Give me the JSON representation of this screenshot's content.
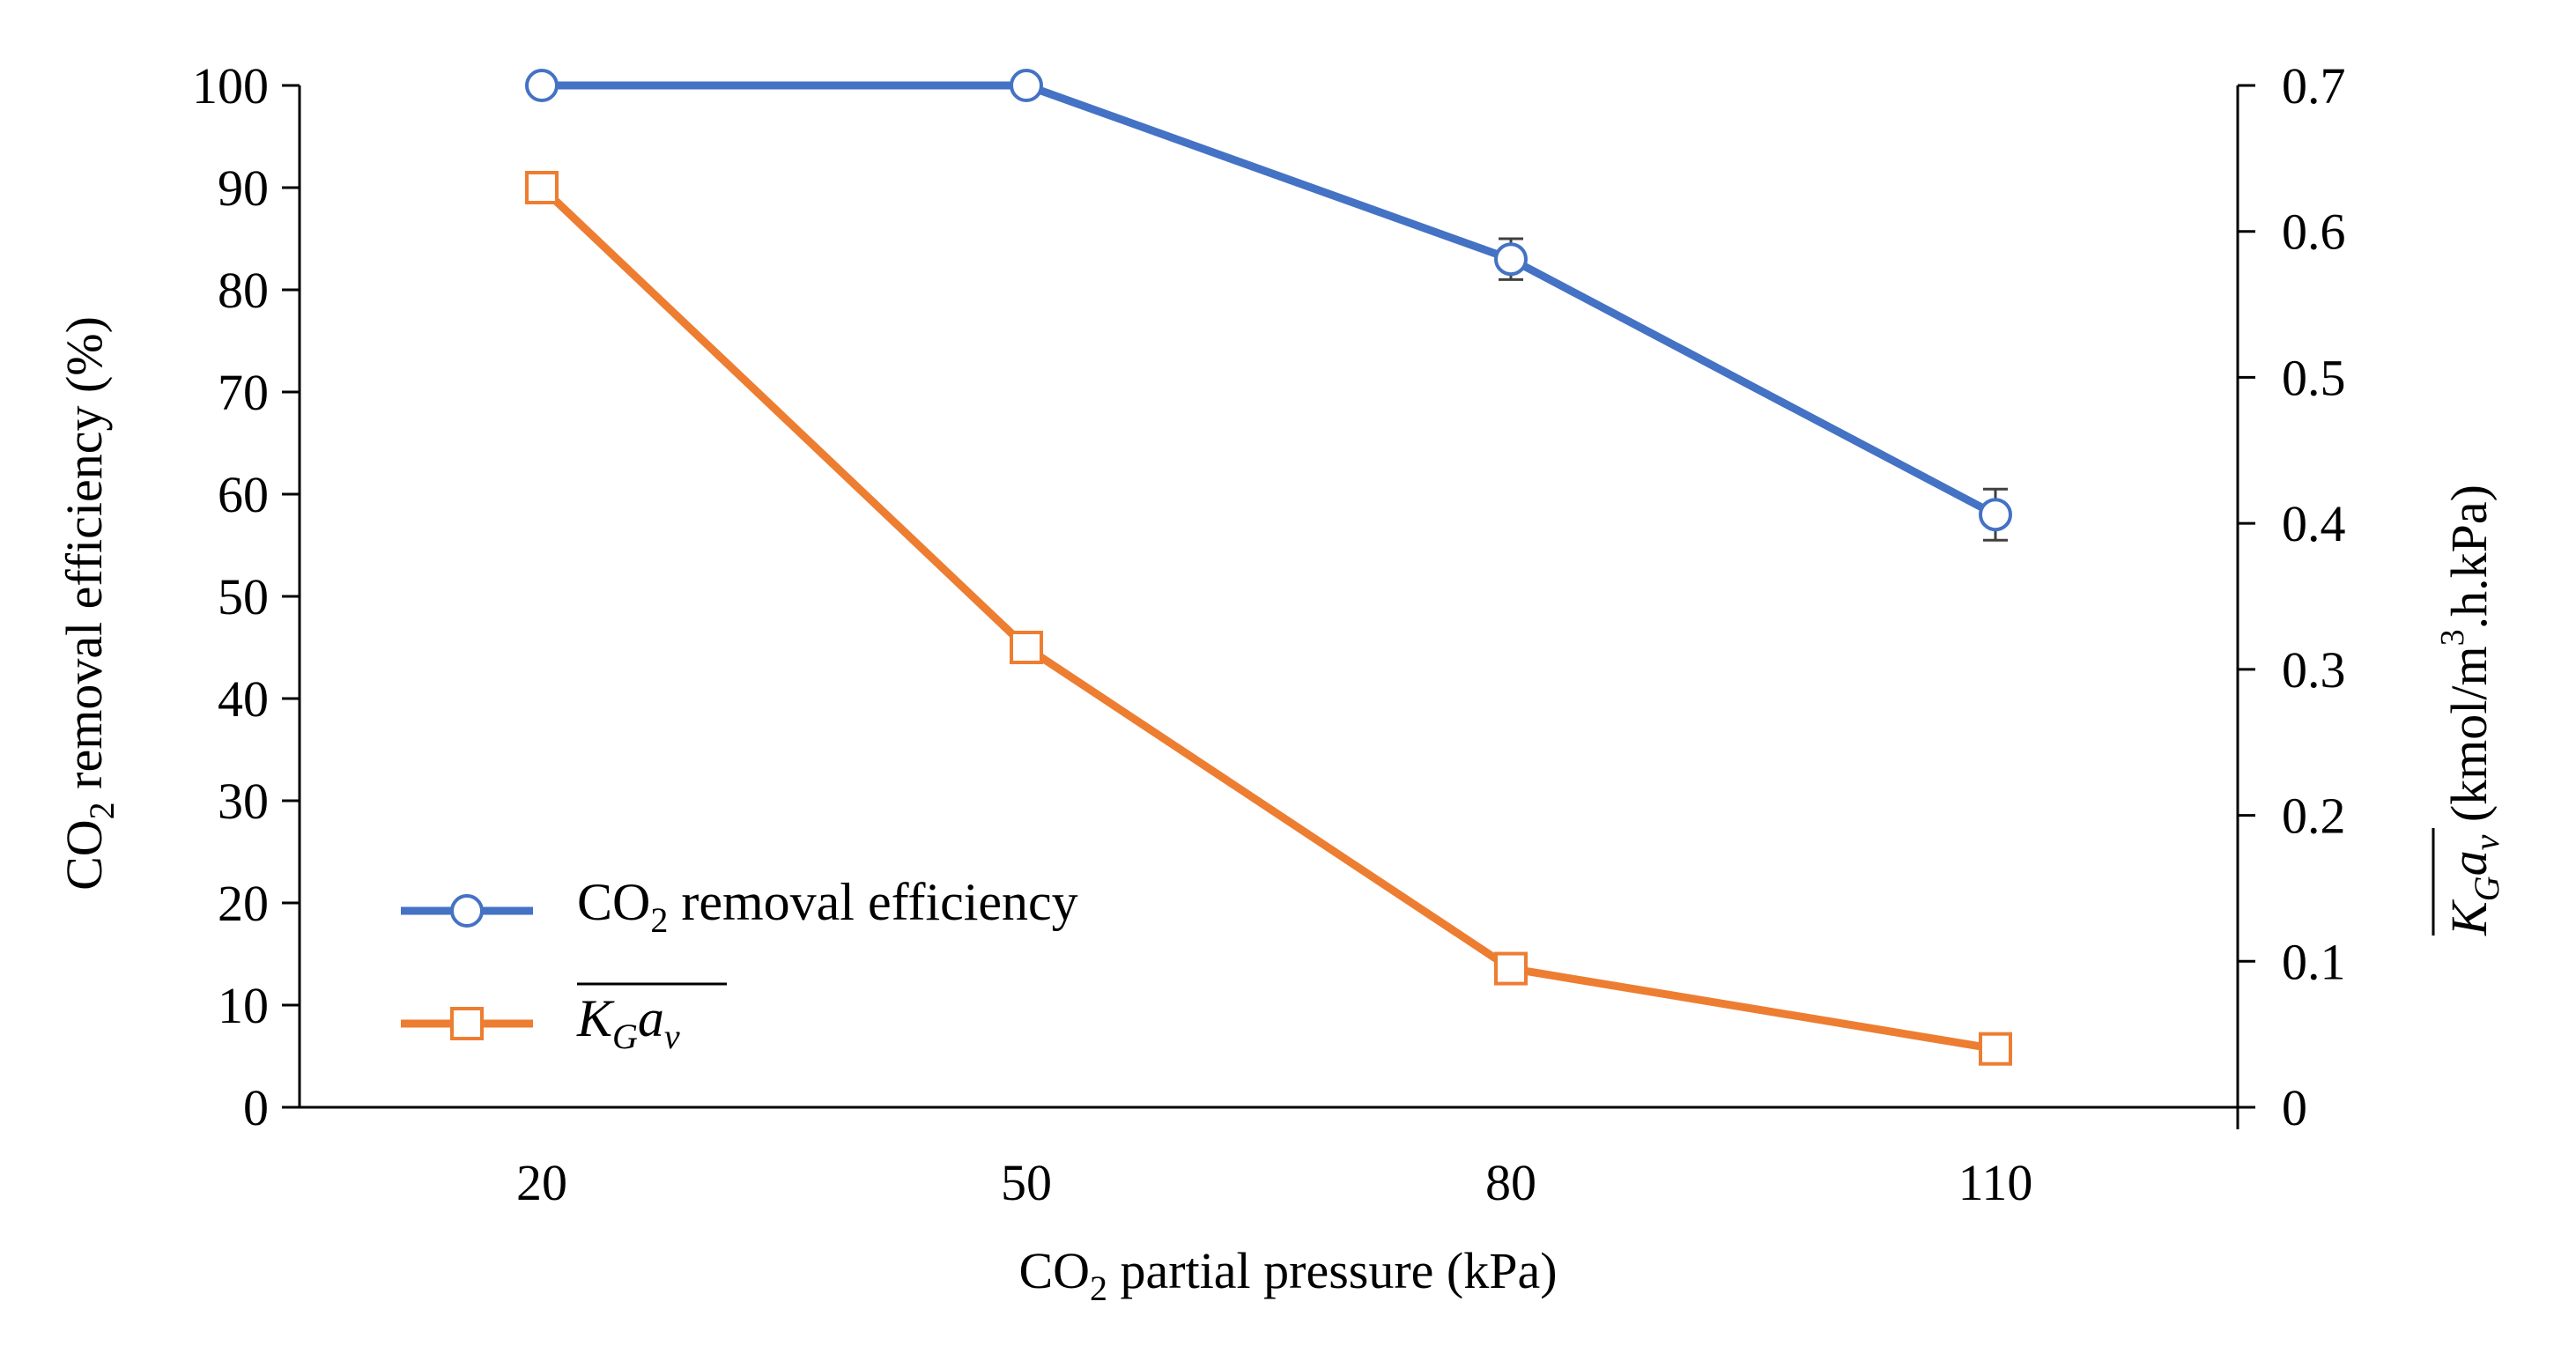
{
  "chart_data": {
    "type": "line",
    "categories": [
      "20",
      "50",
      "80",
      "110"
    ],
    "x": [
      20,
      50,
      80,
      110
    ],
    "xlabel": {
      "prefix": "CO",
      "subscript": "2",
      "suffix": " partial pressure (kPa)"
    },
    "ylabel_left": {
      "prefix": "CO",
      "subscript": "2",
      "suffix": " removal efficiency (%)"
    },
    "ylabel_right": {
      "symbol_base": "K",
      "symbol_sub": "G",
      "symbol_second": "a",
      "symbol_second_sub": "v",
      "units_part1": " (kmol/m",
      "units_sup": "3",
      "units_part2": ".h.kPa)"
    },
    "ylim_left": [
      0,
      100
    ],
    "ylim_right": [
      0,
      0.7
    ],
    "yticks_left": [
      "0",
      "10",
      "20",
      "30",
      "40",
      "50",
      "60",
      "70",
      "80",
      "90",
      "100"
    ],
    "yticks_right": [
      "0",
      "0.1",
      "0.2",
      "0.3",
      "0.4",
      "0.5",
      "0.6",
      "0.7"
    ],
    "grid": false,
    "legend_position": "bottom-left",
    "series": [
      {
        "name": "CO2 removal efficiency",
        "legend_prefix": "CO",
        "legend_sub": "2",
        "legend_suffix": " removal efficiency",
        "axis": "left",
        "marker": "circle",
        "color": "#4472C4",
        "values": [
          100,
          100,
          83,
          58
        ],
        "errors": [
          0,
          0,
          2,
          2.5
        ]
      },
      {
        "name": "KGav",
        "legend_base": "K",
        "legend_sub": "G",
        "legend_second": "a",
        "legend_second_sub": "v",
        "axis": "right",
        "marker": "square",
        "color": "#ED7D31",
        "values": [
          0.63,
          0.315,
          0.095,
          0.04
        ],
        "errors": [
          0,
          0,
          0.006,
          0
        ]
      }
    ]
  }
}
